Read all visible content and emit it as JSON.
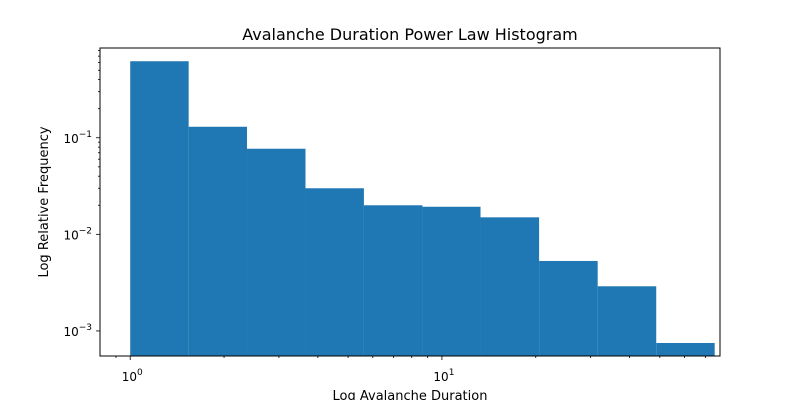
{
  "chart_data": {
    "type": "bar",
    "title": "Avalanche Duration Power Law Histogram",
    "xlabel": "Log Avalanche Duration",
    "ylabel": "Log Relative Frequency",
    "xscale": "log",
    "yscale": "log",
    "xlim": [
      0.8,
      78
    ],
    "ylim": [
      0.00055,
      0.85
    ],
    "bar_color": "#1f77b4",
    "grid": false,
    "legend": "none",
    "bins": [
      {
        "x0": 1.0,
        "x1": 1.54,
        "value": 0.62
      },
      {
        "x0": 1.54,
        "x1": 2.37,
        "value": 0.13
      },
      {
        "x0": 2.37,
        "x1": 3.65,
        "value": 0.077
      },
      {
        "x0": 3.65,
        "x1": 5.62,
        "value": 0.03
      },
      {
        "x0": 5.62,
        "x1": 8.66,
        "value": 0.02
      },
      {
        "x0": 8.66,
        "x1": 13.3,
        "value": 0.0193
      },
      {
        "x0": 13.3,
        "x1": 20.5,
        "value": 0.015
      },
      {
        "x0": 20.5,
        "x1": 31.6,
        "value": 0.0053
      },
      {
        "x0": 31.6,
        "x1": 48.7,
        "value": 0.0029
      },
      {
        "x0": 48.7,
        "x1": 75.0,
        "value": 0.00075
      }
    ],
    "x_major_ticks": [
      {
        "value": 1,
        "base": "10",
        "exp": "0"
      },
      {
        "value": 10,
        "base": "10",
        "exp": "1"
      }
    ],
    "y_major_ticks": [
      {
        "value": 0.1,
        "base": "10",
        "exp": "−1"
      },
      {
        "value": 0.01,
        "base": "10",
        "exp": "−2"
      },
      {
        "value": 0.001,
        "base": "10",
        "exp": "−3"
      }
    ]
  }
}
